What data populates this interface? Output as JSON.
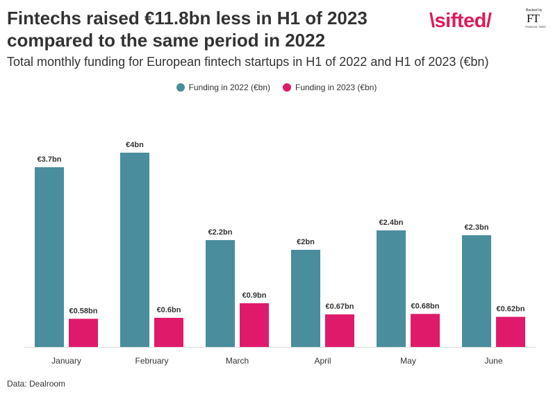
{
  "header": {
    "title": "Fintechs raised €11.8bn less in H1 of 2023 compared to the same period in 2022",
    "subtitle": "Total monthly funding for European fintech startups in H1 of 2022 and H1 of 2023 (€bn)"
  },
  "logo": {
    "brand": "\\sifted/",
    "backed_by": "Backed by",
    "ft": "FT",
    "publisher": "FINANCIAL TIMES"
  },
  "footer": {
    "source": "Data: Dealroom"
  },
  "colors": {
    "series_2022": "#4a8d9d",
    "series_2023": "#e01a6a",
    "axis": "#dddddd"
  },
  "chart_data": {
    "type": "bar",
    "categories": [
      "January",
      "February",
      "March",
      "April",
      "May",
      "June"
    ],
    "series": [
      {
        "name": "Funding in 2022 (€bn)",
        "values": [
          3.7,
          4,
          2.2,
          2,
          2.4,
          2.3
        ],
        "labels": [
          "€3.7bn",
          "€4bn",
          "€2.2bn",
          "€2bn",
          "€2.4bn",
          "€2.3bn"
        ]
      },
      {
        "name": "Funding in 2023 (€bn)",
        "values": [
          0.58,
          0.6,
          0.9,
          0.67,
          0.68,
          0.62
        ],
        "labels": [
          "€0.58bn",
          "€0.6bn",
          "€0.9bn",
          "€0.67bn",
          "€0.68bn",
          "€0.62bn"
        ]
      }
    ],
    "ylim": [
      0,
      4
    ],
    "grid": false,
    "legend_position": "top-center"
  }
}
